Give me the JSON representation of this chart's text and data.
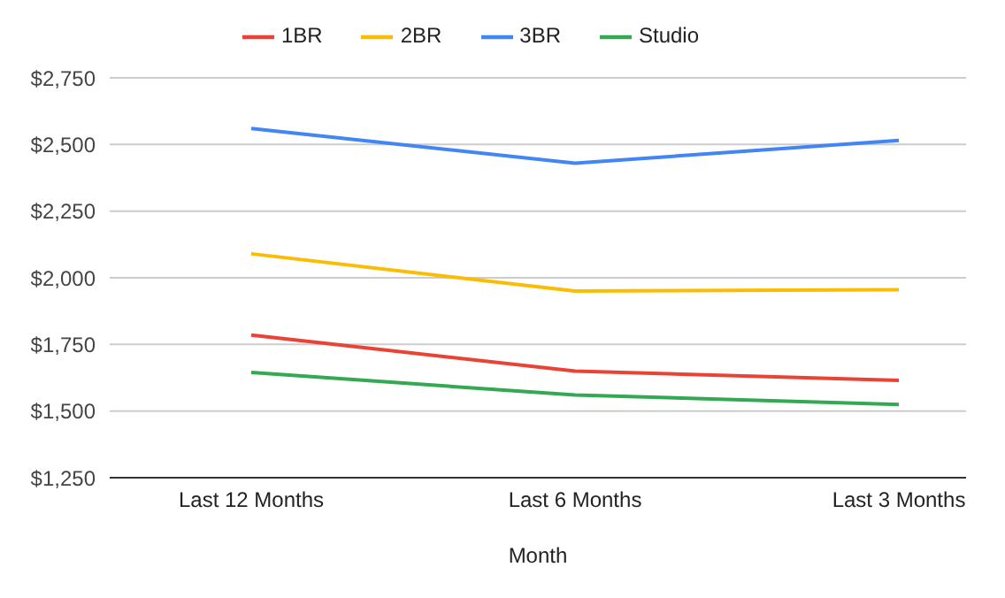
{
  "chart_data": {
    "type": "line",
    "xlabel": "Month",
    "categories": [
      "Last 12 Months",
      "Last 6 Months",
      "Last 3 Months"
    ],
    "series": [
      {
        "name": "3BR",
        "color": "#4285f4",
        "values": [
          2560,
          2430,
          2515
        ]
      },
      {
        "name": "1BR",
        "color": "#ea4335",
        "values": [
          1785,
          1650,
          1615
        ]
      },
      {
        "name": "2BR",
        "color": "#fbbc04",
        "values": [
          2090,
          1950,
          1955
        ]
      },
      {
        "name": "Studio",
        "color": "#34a853",
        "values": [
          1645,
          1560,
          1525
        ]
      }
    ],
    "ylim": [
      1250,
      2750
    ],
    "yticks": [
      {
        "value": 1250,
        "label": "$1,250"
      },
      {
        "value": 1500,
        "label": "$1,500"
      },
      {
        "value": 1750,
        "label": "$1,750"
      },
      {
        "value": 2000,
        "label": "$2,000"
      },
      {
        "value": 2250,
        "label": "$2,250"
      },
      {
        "value": 2500,
        "label": "$2,500"
      },
      {
        "value": 2750,
        "label": "$2,750"
      }
    ],
    "grid": "y",
    "legend": "top",
    "marker": "none",
    "line_style": "solid"
  }
}
